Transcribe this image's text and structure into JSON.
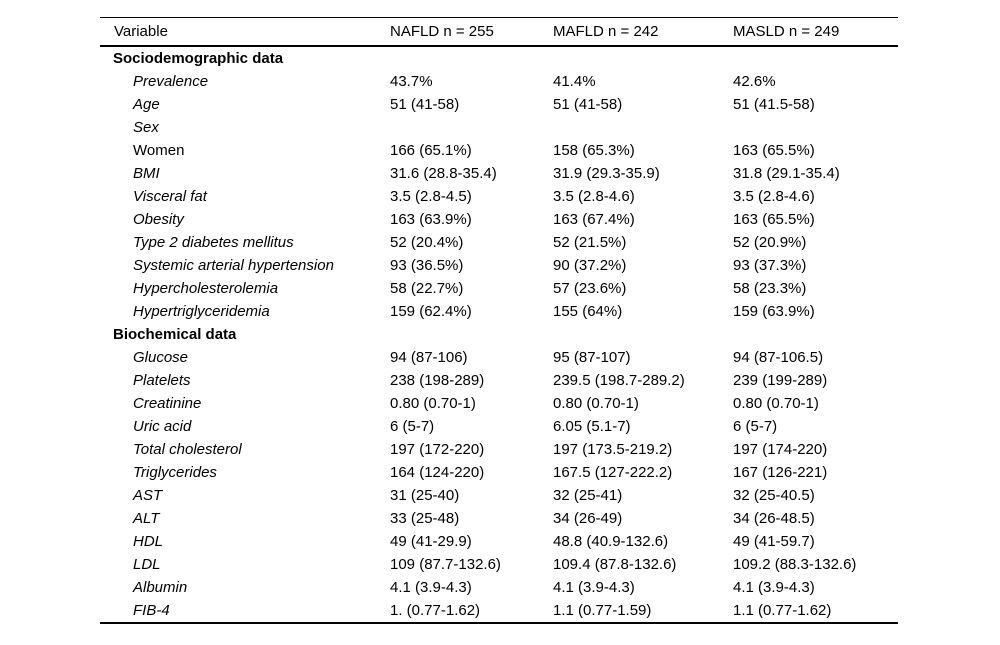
{
  "table": {
    "columns": [
      "Variable",
      "NAFLD n = 255",
      "MAFLD n = 242",
      "MASLD n = 249"
    ],
    "sections": [
      {
        "title": "Sociodemographic data",
        "rows": [
          {
            "label": "Prevalence",
            "italic": true,
            "values": [
              "43.7%",
              "41.4%",
              "42.6%"
            ]
          },
          {
            "label": "Age",
            "italic": true,
            "values": [
              "51 (41-58)",
              "51 (41-58)",
              "51 (41.5-58)"
            ]
          },
          {
            "label": "Sex",
            "italic": true,
            "values": [
              "",
              "",
              ""
            ]
          },
          {
            "label": "Women",
            "italic": false,
            "values": [
              "166 (65.1%)",
              "158 (65.3%)",
              "163 (65.5%)"
            ]
          },
          {
            "label": "BMI",
            "italic": true,
            "values": [
              "31.6 (28.8-35.4)",
              "31.9 (29.3-35.9)",
              "31.8 (29.1-35.4)"
            ]
          },
          {
            "label": "Visceral fat",
            "italic": true,
            "values": [
              "3.5 (2.8-4.5)",
              "3.5 (2.8-4.6)",
              "3.5 (2.8-4.6)"
            ]
          },
          {
            "label": "Obesity",
            "italic": true,
            "values": [
              "163 (63.9%)",
              "163 (67.4%)",
              "163 (65.5%)"
            ]
          },
          {
            "label": "Type 2 diabetes mellitus",
            "italic": true,
            "values": [
              "52 (20.4%)",
              "52 (21.5%)",
              "52 (20.9%)"
            ]
          },
          {
            "label": "Systemic arterial hypertension",
            "italic": true,
            "values": [
              "93 (36.5%)",
              "90 (37.2%)",
              "93 (37.3%)"
            ]
          },
          {
            "label": "Hypercholesterolemia",
            "italic": true,
            "values": [
              "58 (22.7%)",
              "57 (23.6%)",
              "58 (23.3%)"
            ]
          },
          {
            "label": "Hypertriglyceridemia",
            "italic": true,
            "values": [
              "159 (62.4%)",
              "155 (64%)",
              "159 (63.9%)"
            ]
          }
        ]
      },
      {
        "title": "Biochemical data",
        "rows": [
          {
            "label": "Glucose",
            "italic": true,
            "values": [
              "94 (87-106)",
              "95 (87-107)",
              "94 (87-106.5)"
            ]
          },
          {
            "label": "Platelets",
            "italic": true,
            "values": [
              "238 (198-289)",
              "239.5 (198.7-289.2)",
              "239 (199-289)"
            ]
          },
          {
            "label": "Creatinine",
            "italic": true,
            "values": [
              "0.80 (0.70-1)",
              "0.80 (0.70-1)",
              "0.80 (0.70-1)"
            ]
          },
          {
            "label": "Uric acid",
            "italic": true,
            "values": [
              "6 (5-7)",
              "6.05 (5.1-7)",
              "6 (5-7)"
            ]
          },
          {
            "label": "Total cholesterol",
            "italic": true,
            "values": [
              "197 (172-220)",
              "197 (173.5-219.2)",
              "197 (174-220)"
            ]
          },
          {
            "label": "Triglycerides",
            "italic": true,
            "values": [
              "164 (124-220)",
              "167.5 (127-222.2)",
              "167 (126-221)"
            ]
          },
          {
            "label": "AST",
            "italic": true,
            "values": [
              "31 (25-40)",
              "32 (25-41)",
              "32 (25-40.5)"
            ]
          },
          {
            "label": "ALT",
            "italic": true,
            "values": [
              "33 (25-48)",
              "34 (26-49)",
              "34 (26-48.5)"
            ]
          },
          {
            "label": "HDL",
            "italic": true,
            "values": [
              "49 (41-29.9)",
              "48.8 (40.9-132.6)",
              "49 (41-59.7)"
            ]
          },
          {
            "label": "LDL",
            "italic": true,
            "values": [
              "109 (87.7-132.6)",
              "109.4 (87.8-132.6)",
              "109.2 (88.3-132.6)"
            ]
          },
          {
            "label": "Albumin",
            "italic": true,
            "values": [
              "4.1 (3.9-4.3)",
              "4.1 (3.9-4.3)",
              "4.1 (3.9-4.3)"
            ]
          },
          {
            "label": "FIB-4",
            "italic": true,
            "values": [
              "1. (0.77-1.62)",
              "1.1 (0.77-1.59)",
              "1.1 (0.77-1.62)"
            ]
          }
        ]
      }
    ]
  }
}
